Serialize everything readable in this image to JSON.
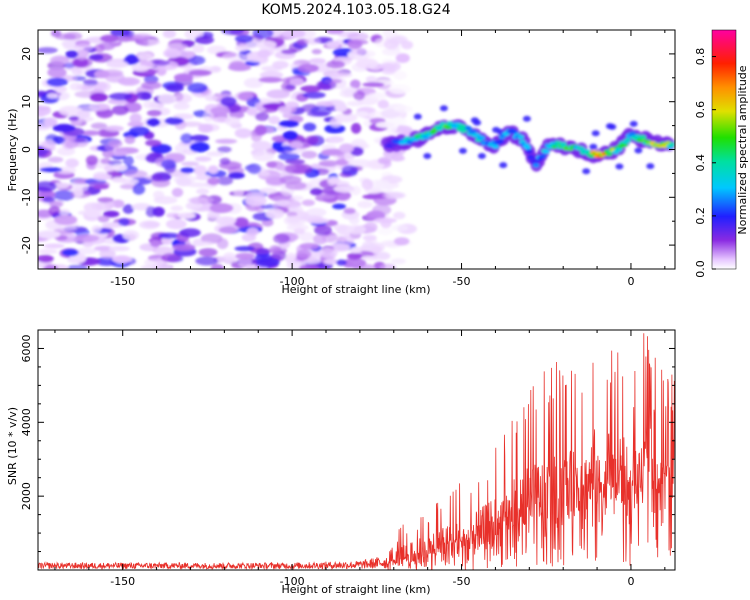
{
  "title": "KOM5.2024.103.05.18.G24",
  "colors": {
    "snr_line": "#e8302a",
    "axis": "#000000",
    "background": "#ffffff"
  },
  "chart_data": [
    {
      "type": "heatmap",
      "name": "spectrogram",
      "xlabel": "Height of straight line (km)",
      "ylabel": "Frequency (Hz)",
      "xlim": [
        -175,
        13
      ],
      "ylim": [
        -25,
        25
      ],
      "xticks": [
        -150,
        -100,
        -50,
        0
      ],
      "yticks": [
        -20,
        -10,
        0,
        10,
        20
      ],
      "colorbar": {
        "label": "Normalized spectral amplitude",
        "range": [
          0,
          0.9
        ],
        "ticks": [
          0.0,
          0.2,
          0.4,
          0.6,
          0.8
        ],
        "colormap": "white-violet-blue-cyan-green-yellow-orange-red-magenta"
      },
      "noise_region": {
        "x_range": [
          -175,
          -70
        ],
        "freq_range": [
          -25,
          25
        ],
        "amplitude": [
          0.02,
          0.2
        ]
      },
      "signal_trace": {
        "x": [
          -72,
          -68,
          -64,
          -60,
          -56,
          -52,
          -48,
          -44,
          -40,
          -36,
          -32,
          -28,
          -24,
          -20,
          -16,
          -12,
          -8,
          -4,
          0,
          4,
          8,
          12
        ],
        "freq_hz": [
          1,
          1.5,
          2,
          3,
          5,
          5,
          4,
          2,
          1,
          4,
          2,
          -3,
          1,
          1,
          0,
          -1,
          -1,
          0,
          3,
          2,
          1,
          1
        ],
        "amplitude": [
          0.15,
          0.3,
          0.4,
          0.45,
          0.5,
          0.45,
          0.4,
          0.35,
          0.3,
          0.3,
          0.3,
          0.25,
          0.4,
          0.5,
          0.45,
          0.55,
          0.8,
          0.5,
          0.4,
          0.5,
          0.6,
          0.5
        ]
      }
    },
    {
      "type": "line",
      "name": "snr",
      "xlabel": "Height of straight line (km)",
      "ylabel": "SNR (10 * v/v)",
      "xlim": [
        -175,
        13
      ],
      "ylim": [
        0,
        6500
      ],
      "xticks": [
        -150,
        -100,
        -50,
        0
      ],
      "yticks": [
        2000,
        4000,
        6000
      ],
      "series": [
        {
          "x": [
            -175,
            -160,
            -140,
            -120,
            -100,
            -80,
            -72,
            -68,
            -64,
            -60,
            -56,
            -52,
            -48,
            -44,
            -40,
            -36,
            -32,
            -28,
            -24,
            -20,
            -16,
            -12,
            -8,
            -4,
            0,
            4,
            8,
            12
          ],
          "envelope_max": [
            200,
            200,
            200,
            200,
            200,
            250,
            400,
            1200,
            1400,
            1700,
            2000,
            2300,
            2500,
            3000,
            3600,
            4100,
            4800,
            5200,
            5500,
            5800,
            5900,
            5800,
            5700,
            6300,
            5100,
            6500,
            5800,
            5300
          ],
          "baseline": [
            100,
            100,
            100,
            100,
            100,
            120,
            200,
            300,
            400,
            500,
            700,
            800,
            900,
            1000,
            1200,
            1400,
            1600,
            2100,
            2300,
            2500,
            3000,
            3200,
            3300,
            3500,
            2500,
            4500,
            4200,
            4300
          ]
        }
      ]
    }
  ]
}
